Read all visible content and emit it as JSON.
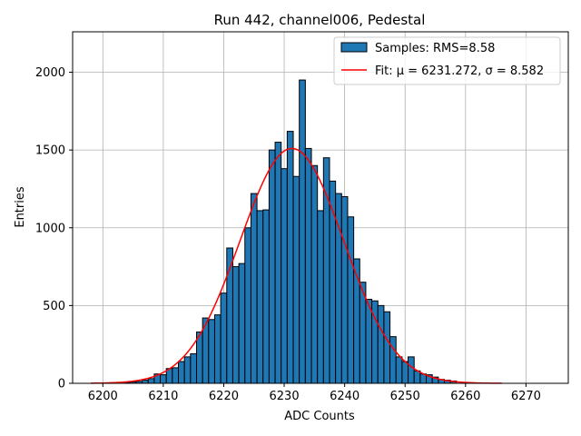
{
  "chart_data": {
    "type": "bar",
    "title": "Run 442, channel006, Pedestal",
    "xlabel": "ADC Counts",
    "ylabel": "Entries",
    "xlim": [
      6195,
      6277
    ],
    "ylim": [
      0,
      2260
    ],
    "grid": true,
    "legend_position": "top-right",
    "xticks": [
      6200,
      6210,
      6220,
      6230,
      6240,
      6250,
      6260,
      6270
    ],
    "yticks": [
      0,
      500,
      1000,
      1500,
      2000
    ],
    "histogram": {
      "name": "Samples: RMS=8.58",
      "color": "#1f77b4",
      "edge_color": "#000000",
      "bin_width": 1,
      "bins": [
        [
          6204,
          5
        ],
        [
          6205,
          8
        ],
        [
          6206,
          12
        ],
        [
          6207,
          20
        ],
        [
          6208,
          30
        ],
        [
          6209,
          60
        ],
        [
          6210,
          55
        ],
        [
          6211,
          95
        ],
        [
          6212,
          100
        ],
        [
          6213,
          140
        ],
        [
          6214,
          170
        ],
        [
          6215,
          190
        ],
        [
          6216,
          330
        ],
        [
          6217,
          420
        ],
        [
          6218,
          410
        ],
        [
          6219,
          440
        ],
        [
          6220,
          580
        ],
        [
          6221,
          870
        ],
        [
          6222,
          750
        ],
        [
          6223,
          770
        ],
        [
          6224,
          1000
        ],
        [
          6225,
          1220
        ],
        [
          6226,
          1110
        ],
        [
          6227,
          1115
        ],
        [
          6228,
          1500
        ],
        [
          6229,
          1550
        ],
        [
          6230,
          1380
        ],
        [
          6231,
          1620
        ],
        [
          6232,
          1330
        ],
        [
          6233,
          1950
        ],
        [
          6234,
          1510
        ],
        [
          6235,
          1400
        ],
        [
          6236,
          1110
        ],
        [
          6237,
          1450
        ],
        [
          6238,
          1300
        ],
        [
          6239,
          1220
        ],
        [
          6240,
          1200
        ],
        [
          6241,
          1070
        ],
        [
          6242,
          800
        ],
        [
          6243,
          650
        ],
        [
          6244,
          540
        ],
        [
          6245,
          530
        ],
        [
          6246,
          500
        ],
        [
          6247,
          460
        ],
        [
          6248,
          300
        ],
        [
          6249,
          170
        ],
        [
          6250,
          140
        ],
        [
          6251,
          170
        ],
        [
          6252,
          80
        ],
        [
          6253,
          60
        ],
        [
          6254,
          55
        ],
        [
          6255,
          40
        ],
        [
          6256,
          25
        ],
        [
          6257,
          20
        ],
        [
          6258,
          15
        ]
      ]
    },
    "fit": {
      "name": "Fit: μ = 6231.272, σ = 8.582",
      "color": "#ff0000",
      "mu": 6231.272,
      "sigma": 8.582,
      "amplitude": 1510,
      "x_range": [
        6198,
        6266
      ]
    }
  }
}
